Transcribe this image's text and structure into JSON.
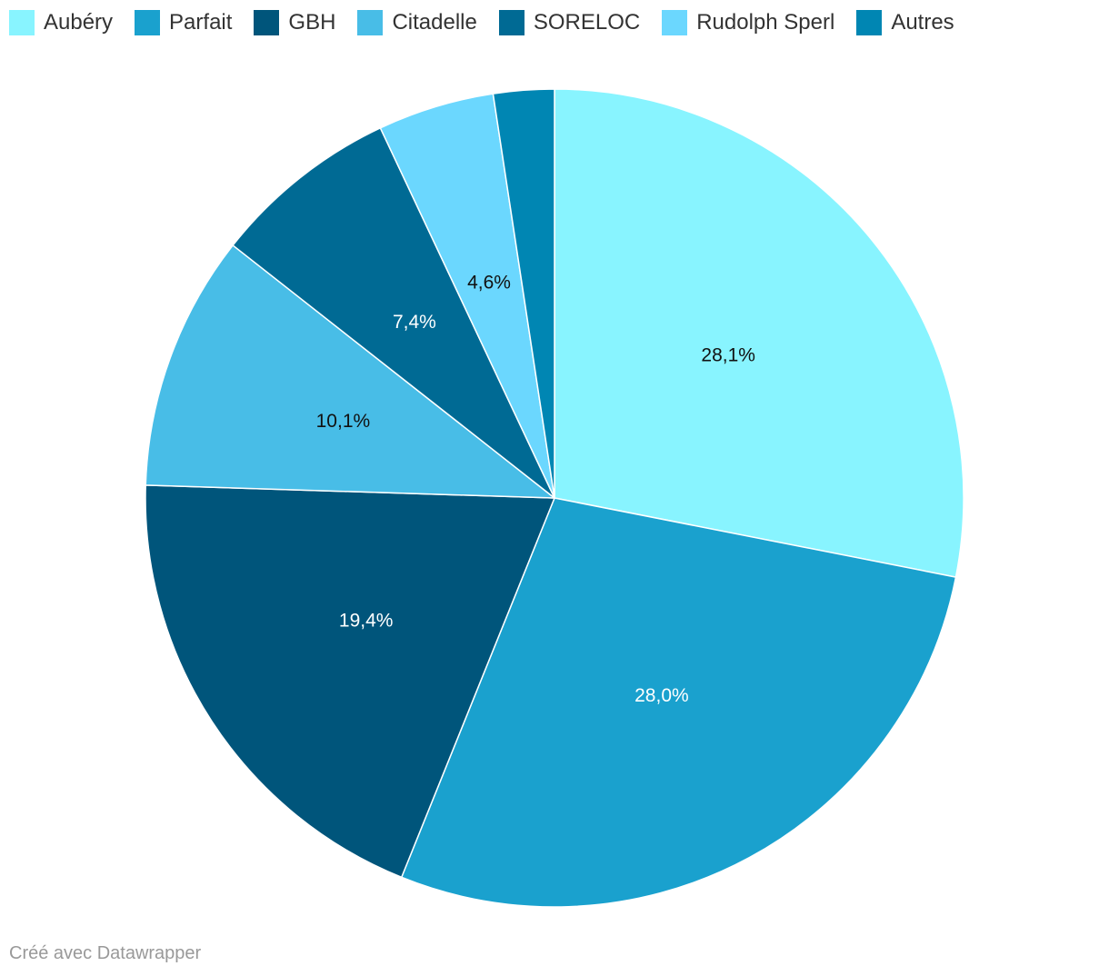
{
  "chart_data": {
    "type": "pie",
    "title": "",
    "slices": [
      {
        "label": "Aubéry",
        "value": 28.1,
        "value_label": "28,1%",
        "color": "#88f4ff",
        "label_color": "#111111"
      },
      {
        "label": "Parfait",
        "value": 28.0,
        "value_label": "28,0%",
        "color": "#1aa1ce",
        "label_color": "#ffffff"
      },
      {
        "label": "GBH",
        "value": 19.4,
        "value_label": "19,4%",
        "color": "#00557b",
        "label_color": "#ffffff"
      },
      {
        "label": "Citadelle",
        "value": 10.1,
        "value_label": "10,1%",
        "color": "#48bde7",
        "label_color": "#111111"
      },
      {
        "label": "SORELOC",
        "value": 7.4,
        "value_label": "7,4%",
        "color": "#006a94",
        "label_color": "#ffffff"
      },
      {
        "label": "Rudolph Sperl",
        "value": 4.6,
        "value_label": "4,6%",
        "color": "#6bd7fe",
        "label_color": "#111111"
      },
      {
        "label": "Autres",
        "value": 2.4,
        "value_label": "",
        "color": "#0086b3",
        "label_color": "#ffffff"
      }
    ],
    "legend_position": "top-left"
  },
  "footer": {
    "credit": "Créé avec Datawrapper"
  }
}
